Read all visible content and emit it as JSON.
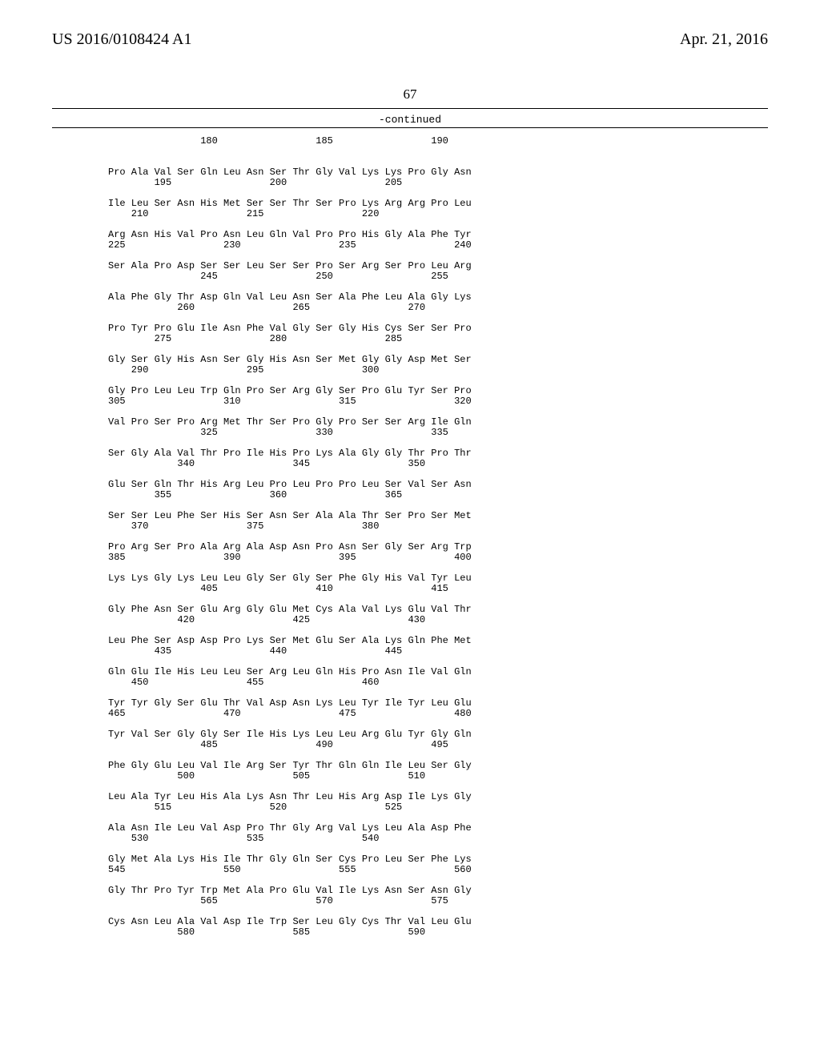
{
  "header": {
    "left": "US 2016/0108424 A1",
    "right": "Apr. 21, 2016"
  },
  "page_number": "67",
  "continued_label": "-continued",
  "sequence_blocks": [
    {
      "numline": "                180                 185                 190",
      "seqline": "",
      "posline": ""
    },
    {
      "seqline": "Pro Ala Val Ser Gln Leu Asn Ser Thr Gly Val Lys Lys Pro Gly Asn",
      "posline": "        195                 200                 205"
    },
    {
      "seqline": "Ile Leu Ser Asn His Met Ser Ser Thr Ser Pro Lys Arg Arg Pro Leu",
      "posline": "    210                 215                 220"
    },
    {
      "seqline": "Arg Asn His Val Pro Asn Leu Gln Val Pro Pro His Gly Ala Phe Tyr",
      "posline": "225                 230                 235                 240"
    },
    {
      "seqline": "Ser Ala Pro Asp Ser Ser Leu Ser Ser Pro Ser Arg Ser Pro Leu Arg",
      "posline": "                245                 250                 255"
    },
    {
      "seqline": "Ala Phe Gly Thr Asp Gln Val Leu Asn Ser Ala Phe Leu Ala Gly Lys",
      "posline": "            260                 265                 270"
    },
    {
      "seqline": "Pro Tyr Pro Glu Ile Asn Phe Val Gly Ser Gly His Cys Ser Ser Pro",
      "posline": "        275                 280                 285"
    },
    {
      "seqline": "Gly Ser Gly His Asn Ser Gly His Asn Ser Met Gly Gly Asp Met Ser",
      "posline": "    290                 295                 300"
    },
    {
      "seqline": "Gly Pro Leu Leu Trp Gln Pro Ser Arg Gly Ser Pro Glu Tyr Ser Pro",
      "posline": "305                 310                 315                 320"
    },
    {
      "seqline": "Val Pro Ser Pro Arg Met Thr Ser Pro Gly Pro Ser Ser Arg Ile Gln",
      "posline": "                325                 330                 335"
    },
    {
      "seqline": "Ser Gly Ala Val Thr Pro Ile His Pro Lys Ala Gly Gly Thr Pro Thr",
      "posline": "            340                 345                 350"
    },
    {
      "seqline": "Glu Ser Gln Thr His Arg Leu Pro Leu Pro Pro Leu Ser Val Ser Asn",
      "posline": "        355                 360                 365"
    },
    {
      "seqline": "Ser Ser Leu Phe Ser His Ser Asn Ser Ala Ala Thr Ser Pro Ser Met",
      "posline": "    370                 375                 380"
    },
    {
      "seqline": "Pro Arg Ser Pro Ala Arg Ala Asp Asn Pro Asn Ser Gly Ser Arg Trp",
      "posline": "385                 390                 395                 400"
    },
    {
      "seqline": "Lys Lys Gly Lys Leu Leu Gly Ser Gly Ser Phe Gly His Val Tyr Leu",
      "posline": "                405                 410                 415"
    },
    {
      "seqline": "Gly Phe Asn Ser Glu Arg Gly Glu Met Cys Ala Val Lys Glu Val Thr",
      "posline": "            420                 425                 430"
    },
    {
      "seqline": "Leu Phe Ser Asp Asp Pro Lys Ser Met Glu Ser Ala Lys Gln Phe Met",
      "posline": "        435                 440                 445"
    },
    {
      "seqline": "Gln Glu Ile His Leu Leu Ser Arg Leu Gln His Pro Asn Ile Val Gln",
      "posline": "    450                 455                 460"
    },
    {
      "seqline": "Tyr Tyr Gly Ser Glu Thr Val Asp Asn Lys Leu Tyr Ile Tyr Leu Glu",
      "posline": "465                 470                 475                 480"
    },
    {
      "seqline": "Tyr Val Ser Gly Gly Ser Ile His Lys Leu Leu Arg Glu Tyr Gly Gln",
      "posline": "                485                 490                 495"
    },
    {
      "seqline": "Phe Gly Glu Leu Val Ile Arg Ser Tyr Thr Gln Gln Ile Leu Ser Gly",
      "posline": "            500                 505                 510"
    },
    {
      "seqline": "Leu Ala Tyr Leu His Ala Lys Asn Thr Leu His Arg Asp Ile Lys Gly",
      "posline": "        515                 520                 525"
    },
    {
      "seqline": "Ala Asn Ile Leu Val Asp Pro Thr Gly Arg Val Lys Leu Ala Asp Phe",
      "posline": "    530                 535                 540"
    },
    {
      "seqline": "Gly Met Ala Lys His Ile Thr Gly Gln Ser Cys Pro Leu Ser Phe Lys",
      "posline": "545                 550                 555                 560"
    },
    {
      "seqline": "Gly Thr Pro Tyr Trp Met Ala Pro Glu Val Ile Lys Asn Ser Asn Gly",
      "posline": "                565                 570                 575"
    },
    {
      "seqline": "Cys Asn Leu Ala Val Asp Ile Trp Ser Leu Gly Cys Thr Val Leu Glu",
      "posline": "            580                 585                 590"
    }
  ]
}
